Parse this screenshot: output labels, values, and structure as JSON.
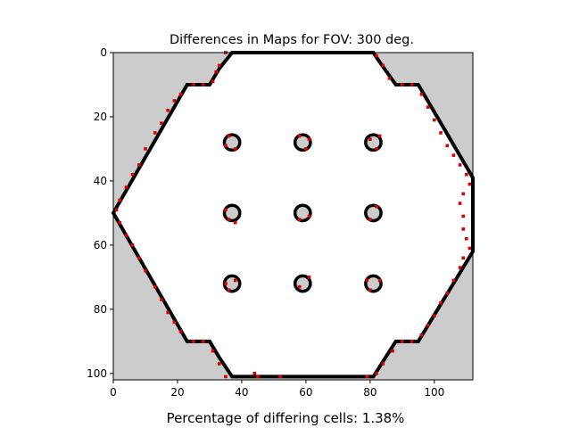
{
  "chart_data": {
    "type": "heatmap",
    "title": "Differences in Maps for FOV: 300 deg.",
    "caption": "Percentage of differing cells: 1.38%",
    "xlim": [
      0,
      112
    ],
    "ylim": [
      0,
      102
    ],
    "y_inverted": true,
    "x_ticks": [
      0,
      20,
      40,
      60,
      80,
      100
    ],
    "y_ticks": [
      0,
      20,
      40,
      60,
      80,
      100
    ],
    "grid": false,
    "colors": {
      "unknown": "#cccccc",
      "free": "#ffffff",
      "occupied": "#000000",
      "difference": "#dd0000"
    },
    "boundary_polygon": [
      [
        37,
        0
      ],
      [
        81,
        0
      ],
      [
        83,
        3
      ],
      [
        88,
        10
      ],
      [
        95,
        10
      ],
      [
        112,
        39
      ],
      [
        112,
        62
      ],
      [
        95,
        90
      ],
      [
        88,
        90
      ],
      [
        81,
        101
      ],
      [
        37,
        101
      ],
      [
        33,
        95
      ],
      [
        30,
        90
      ],
      [
        23,
        90
      ],
      [
        0,
        50
      ],
      [
        23,
        10
      ],
      [
        30,
        10
      ],
      [
        33,
        5
      ]
    ],
    "obstacles": [
      {
        "cx": 37,
        "cy": 28
      },
      {
        "cx": 59,
        "cy": 28
      },
      {
        "cx": 81,
        "cy": 28
      },
      {
        "cx": 37,
        "cy": 50
      },
      {
        "cx": 59,
        "cy": 50
      },
      {
        "cx": 81,
        "cy": 50
      },
      {
        "cx": 37,
        "cy": 72
      },
      {
        "cx": 59,
        "cy": 72
      },
      {
        "cx": 81,
        "cy": 72
      }
    ],
    "obstacle_radius": 2.4,
    "difference_cells": [
      [
        35,
        0
      ],
      [
        33,
        4
      ],
      [
        32,
        6
      ],
      [
        31,
        9
      ],
      [
        28,
        10
      ],
      [
        25,
        10
      ],
      [
        21,
        13
      ],
      [
        19,
        15
      ],
      [
        17,
        18
      ],
      [
        15,
        22
      ],
      [
        13,
        25
      ],
      [
        10,
        30
      ],
      [
        8,
        35
      ],
      [
        6,
        38
      ],
      [
        4,
        42
      ],
      [
        2,
        46
      ],
      [
        1,
        49
      ],
      [
        2,
        53
      ],
      [
        4,
        57
      ],
      [
        6,
        60
      ],
      [
        8,
        64
      ],
      [
        10,
        68
      ],
      [
        13,
        73
      ],
      [
        15,
        77
      ],
      [
        17,
        81
      ],
      [
        19,
        84
      ],
      [
        21,
        87
      ],
      [
        25,
        90
      ],
      [
        28,
        90
      ],
      [
        31,
        93
      ],
      [
        33,
        97
      ],
      [
        35,
        101
      ],
      [
        82,
        1
      ],
      [
        84,
        4
      ],
      [
        86,
        8
      ],
      [
        90,
        10
      ],
      [
        93,
        10
      ],
      [
        96,
        13
      ],
      [
        98,
        17
      ],
      [
        100,
        21
      ],
      [
        102,
        25
      ],
      [
        104,
        29
      ],
      [
        106,
        32
      ],
      [
        108,
        35
      ],
      [
        110,
        38
      ],
      [
        111,
        41
      ],
      [
        109,
        44
      ],
      [
        108,
        47
      ],
      [
        109,
        51
      ],
      [
        109,
        55
      ],
      [
        110,
        58
      ],
      [
        111,
        61
      ],
      [
        109,
        64
      ],
      [
        108,
        67
      ],
      [
        106,
        71
      ],
      [
        104,
        75
      ],
      [
        102,
        78
      ],
      [
        100,
        82
      ],
      [
        98,
        85
      ],
      [
        96,
        88
      ],
      [
        93,
        90
      ],
      [
        90,
        90
      ],
      [
        87,
        93
      ],
      [
        84,
        97
      ],
      [
        82,
        100
      ],
      [
        79,
        101
      ],
      [
        52,
        101
      ],
      [
        45,
        101
      ],
      [
        44,
        100
      ],
      [
        36,
        26
      ],
      [
        38,
        30
      ],
      [
        35,
        29
      ],
      [
        58,
        26
      ],
      [
        60,
        30
      ],
      [
        61,
        27
      ],
      [
        80,
        27
      ],
      [
        82,
        30
      ],
      [
        83,
        26
      ],
      [
        36,
        52
      ],
      [
        38,
        53
      ],
      [
        35,
        49
      ],
      [
        58,
        52
      ],
      [
        61,
        51
      ],
      [
        80,
        52
      ],
      [
        82,
        48
      ],
      [
        36,
        74
      ],
      [
        38,
        71
      ],
      [
        35,
        72
      ],
      [
        58,
        73
      ],
      [
        61,
        70
      ],
      [
        79,
        71
      ],
      [
        80,
        74
      ],
      [
        83,
        71
      ]
    ]
  }
}
